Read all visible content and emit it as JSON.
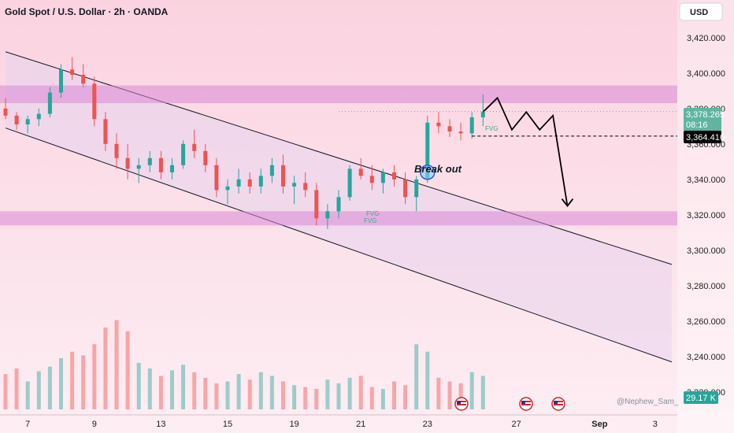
{
  "header": {
    "title": "Gold Spot / U.S. Dollar · 2h · OANDA",
    "currency_button": "USD"
  },
  "watermark": "@Nephew_Sam_",
  "annotations": {
    "breakout": "Break out",
    "fvg_label": "FVG"
  },
  "colors": {
    "up": "#26a69a",
    "down": "#ef5350",
    "zone": "#d889d6",
    "channel_fill": "#e8d4ee",
    "price_tag": "#5fb5a0",
    "level_tag": "#000000",
    "volume_tag": "#26a69a"
  },
  "chart_data": {
    "type": "candlestick",
    "title": "Gold Spot / U.S. Dollar · 2h · OANDA",
    "x_ticks": [
      "7",
      "9",
      "13",
      "15",
      "19",
      "21",
      "23",
      "27",
      "Sep",
      "3"
    ],
    "y_ticks": [
      "3,420.000",
      "3,400.000",
      "3,380.000",
      "3,360.000",
      "3,340.000",
      "3,320.000",
      "3,300.000",
      "3,280.000",
      "3,260.000",
      "3,240.000",
      "3,220.000"
    ],
    "ylim": [
      3220,
      3427
    ],
    "last_price": {
      "value": "3,378.265",
      "countdown": "08:16"
    },
    "level": {
      "value": "3,364.416"
    },
    "volume_last": "29.17 K",
    "zones": [
      {
        "name": "resistance-zone",
        "from": 3383,
        "to": 3393
      },
      {
        "name": "support-zone",
        "from": 3314,
        "to": 3322
      }
    ],
    "channel": {
      "upper": [
        [
          0,
          3412
        ],
        [
          60,
          3292
        ]
      ],
      "lower": [
        [
          0,
          3369
        ],
        [
          60,
          3237
        ]
      ]
    },
    "candles": [
      [
        3380,
        3386,
        3374,
        3376
      ],
      [
        3376,
        3378,
        3368,
        3371
      ],
      [
        3371,
        3376,
        3366,
        3374
      ],
      [
        3374,
        3380,
        3370,
        3377
      ],
      [
        3377,
        3392,
        3375,
        3389
      ],
      [
        3389,
        3405,
        3386,
        3402
      ],
      [
        3402,
        3409,
        3396,
        3399
      ],
      [
        3399,
        3405,
        3392,
        3394
      ],
      [
        3394,
        3398,
        3370,
        3374
      ],
      [
        3374,
        3378,
        3356,
        3360
      ],
      [
        3360,
        3366,
        3346,
        3352
      ],
      [
        3352,
        3360,
        3340,
        3346
      ],
      [
        3346,
        3352,
        3338,
        3348
      ],
      [
        3348,
        3356,
        3344,
        3352
      ],
      [
        3352,
        3356,
        3340,
        3344
      ],
      [
        3344,
        3352,
        3340,
        3348
      ],
      [
        3348,
        3362,
        3346,
        3360
      ],
      [
        3360,
        3368,
        3352,
        3356
      ],
      [
        3356,
        3360,
        3344,
        3348
      ],
      [
        3348,
        3352,
        3330,
        3334
      ],
      [
        3334,
        3340,
        3326,
        3336
      ],
      [
        3336,
        3346,
        3332,
        3340
      ],
      [
        3340,
        3344,
        3332,
        3336
      ],
      [
        3336,
        3346,
        3332,
        3342
      ],
      [
        3342,
        3352,
        3338,
        3348
      ],
      [
        3348,
        3354,
        3332,
        3336
      ],
      [
        3336,
        3342,
        3326,
        3338
      ],
      [
        3338,
        3344,
        3330,
        3334
      ],
      [
        3334,
        3338,
        3314,
        3318
      ],
      [
        3318,
        3326,
        3312,
        3322
      ],
      [
        3322,
        3334,
        3318,
        3330
      ],
      [
        3330,
        3348,
        3328,
        3346
      ],
      [
        3346,
        3352,
        3340,
        3342
      ],
      [
        3342,
        3348,
        3334,
        3338
      ],
      [
        3338,
        3346,
        3332,
        3344
      ],
      [
        3344,
        3348,
        3336,
        3340
      ],
      [
        3340,
        3344,
        3326,
        3330
      ],
      [
        3330,
        3342,
        3322,
        3340
      ],
      [
        3340,
        3376,
        3338,
        3372
      ],
      [
        3372,
        3378,
        3366,
        3370
      ],
      [
        3370,
        3374,
        3364,
        3367
      ],
      [
        3367,
        3372,
        3362,
        3366
      ],
      [
        3366,
        3378,
        3363,
        3375
      ],
      [
        3375,
        3388,
        3370,
        3378
      ]
    ],
    "volumes": [
      38,
      44,
      30,
      41,
      46,
      55,
      62,
      58,
      70,
      88,
      96,
      84,
      50,
      44,
      36,
      42,
      48,
      40,
      34,
      28,
      30,
      38,
      32,
      40,
      36,
      30,
      26,
      24,
      22,
      32,
      28,
      34,
      36,
      24,
      22,
      30,
      26,
      70,
      62,
      34,
      30,
      28,
      40,
      36
    ],
    "projection": [
      [
        43,
        3378
      ],
      [
        44.3,
        3386
      ],
      [
        45.6,
        3368
      ],
      [
        46.9,
        3378
      ],
      [
        48.1,
        3368
      ],
      [
        49.3,
        3376
      ],
      [
        50.6,
        3325
      ]
    ],
    "breakout_point": [
      38,
      3344
    ]
  }
}
